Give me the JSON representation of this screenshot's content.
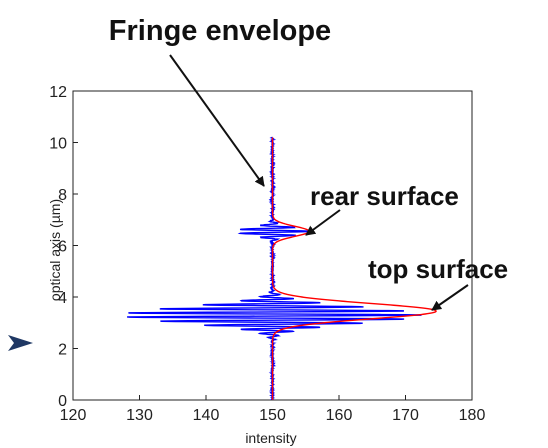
{
  "chart_data": {
    "type": "line",
    "title": "",
    "xlabel": "intensity",
    "ylabel": "optical axis (µm)",
    "xlim": [
      120,
      180
    ],
    "ylim": [
      0,
      12
    ],
    "x_ticks": [
      "120",
      "130",
      "140",
      "150",
      "160",
      "170",
      "180"
    ],
    "y_ticks": [
      "0",
      "2",
      "4",
      "6",
      "8",
      "10",
      "12"
    ],
    "grid": false,
    "series": [
      {
        "color": "#0000ff",
        "baseline": 150,
        "y_range": [
          0,
          10.2
        ],
        "packets": [
          {
            "center_y": 3.3,
            "peak": 22.6,
            "width": 0.45,
            "period": 0.16
          },
          {
            "center_y": 6.55,
            "peak": 5.6,
            "width": 0.22,
            "period": 0.16
          }
        ],
        "noise": 0.4
      },
      {
        "color": "#ff0000",
        "baseline": 150,
        "y_range": [
          0,
          10.2
        ],
        "envelope_peaks": [
          {
            "y": 3.45,
            "x": 174.6
          },
          {
            "y": 6.55,
            "x": 155.5
          }
        ]
      }
    ],
    "annotations": [
      {
        "text": "Fringe envelope",
        "target": {
          "x": 150.5,
          "y": 8.2
        }
      },
      {
        "text": "rear surface",
        "target": {
          "x": 155,
          "y": 6.5
        }
      },
      {
        "text": "top surface",
        "target": {
          "x": 174.5,
          "y": 3.4
        }
      }
    ]
  },
  "marker": {
    "name": "arrow-marker-icon",
    "color": "#1f3864"
  }
}
